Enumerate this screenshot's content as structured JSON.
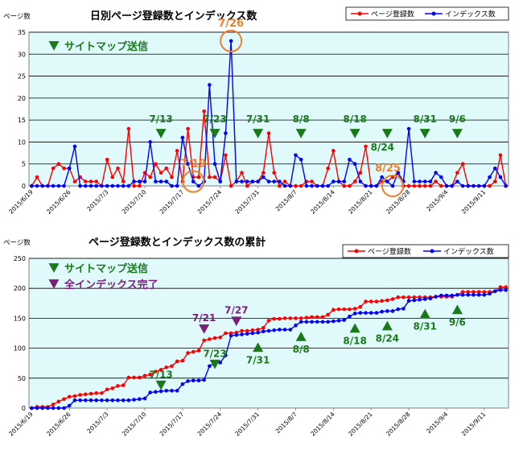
{
  "chart_data": [
    {
      "type": "line",
      "title": "日別ページ登録数とインデックス数",
      "ylabel": "ページ数",
      "xlabel": "",
      "ylim": [
        0,
        35
      ],
      "yticks": [
        0,
        5,
        10,
        15,
        20,
        25,
        30,
        35
      ],
      "x_start": "2015/6/19",
      "x_end": "2015/9/14",
      "x_ticks": [
        "2015/6/19",
        "2015/6/26",
        "2015/7/3",
        "2015/7/10",
        "2015/7/17",
        "2015/7/24",
        "2015/7/31",
        "2015/8/7",
        "2015/8/14",
        "2015/8/21",
        "2015/8/28",
        "2015/9/4",
        "2015/9/11"
      ],
      "grid": true,
      "legend_position": "top-right",
      "colors": {
        "page": "#ff0000",
        "index": "#0000ff",
        "marker": "#1a7a1a",
        "circle": "#f07f2a",
        "plot_bg": "#e0fafc"
      },
      "series": [
        {
          "name": "ページ登録数",
          "values": [
            0,
            2,
            0,
            0,
            4,
            5,
            4,
            4,
            1,
            2,
            1,
            1,
            1,
            0,
            6,
            2,
            4,
            1,
            13,
            0,
            0,
            3,
            2,
            5,
            3,
            4,
            2,
            8,
            1,
            13,
            2,
            2,
            17,
            2,
            2,
            1,
            7,
            0,
            1,
            3,
            0,
            1,
            1,
            3,
            12,
            3,
            0,
            1,
            0,
            0,
            0,
            1,
            1,
            0,
            0,
            4,
            8,
            1,
            0,
            0,
            1,
            3,
            9,
            0,
            0,
            1,
            1,
            2,
            3,
            0,
            0,
            0,
            0,
            0,
            0,
            1,
            0,
            0,
            0,
            3,
            5,
            0,
            0,
            0,
            0,
            0,
            1,
            7,
            0
          ]
        },
        {
          "name": "インデックス数",
          "values": [
            0,
            0,
            0,
            0,
            0,
            0,
            0,
            4,
            9,
            0,
            0,
            0,
            0,
            0,
            0,
            0,
            0,
            0,
            0,
            1,
            1,
            1,
            10,
            1,
            1,
            1,
            0,
            0,
            11,
            5,
            1,
            0,
            1,
            23,
            5,
            1,
            12,
            33,
            1,
            1,
            1,
            1,
            1,
            2,
            1,
            1,
            1,
            0,
            0,
            7,
            6,
            0,
            0,
            0,
            0,
            0,
            1,
            1,
            1,
            6,
            5,
            1,
            0,
            0,
            0,
            2,
            1,
            0,
            3,
            1,
            13,
            1,
            1,
            1,
            1,
            3,
            2,
            0,
            0,
            1,
            0,
            0,
            0,
            0,
            0,
            2,
            4,
            2,
            0
          ]
        }
      ],
      "annotations": {
        "legend_label": "サイトマップ送信",
        "sitemap_dates": [
          "7/13",
          "7/23",
          "7/31",
          "8/8",
          "8/18",
          "8/24",
          "8/31",
          "9/6"
        ],
        "circled_dates": [
          "7/19",
          "7/26",
          "8/25"
        ]
      }
    },
    {
      "type": "line",
      "title": "ページ登録数とインデックス数の累計",
      "ylabel": "ページ数",
      "xlabel": "",
      "ylim": [
        0,
        250
      ],
      "yticks": [
        0,
        50,
        100,
        150,
        200,
        250
      ],
      "x_start": "2015/6/19",
      "x_end": "2015/9/14",
      "x_ticks": [
        "2015/6/19",
        "2015/6/26",
        "2015/7/3",
        "2015/7/10",
        "2015/7/17",
        "2015/7/24",
        "2015/7/31",
        "2015/8/7",
        "2015/8/14",
        "2015/8/21",
        "2015/8/28",
        "2015/9/4",
        "2015/9/11"
      ],
      "grid": true,
      "legend_position": "top-right",
      "colors": {
        "page": "#ff0000",
        "index": "#0000ff",
        "marker": "#1a7a1a",
        "marker2": "#7a1f7a",
        "plot_bg": "#e0fafc"
      },
      "series": [
        {
          "name": "ページ登録数",
          "values": [
            0,
            2,
            2,
            2,
            6,
            11,
            15,
            19,
            20,
            22,
            23,
            24,
            25,
            25,
            31,
            33,
            37,
            38,
            51,
            51,
            51,
            54,
            56,
            61,
            64,
            68,
            70,
            78,
            79,
            92,
            94,
            96,
            113,
            115,
            117,
            118,
            125,
            125,
            126,
            129,
            129,
            130,
            131,
            134,
            146,
            149,
            149,
            150,
            150,
            150,
            150,
            151,
            152,
            152,
            152,
            156,
            164,
            165,
            165,
            165,
            166,
            169,
            178,
            178,
            178,
            179,
            180,
            182,
            185,
            185,
            185,
            185,
            185,
            185,
            185,
            186,
            186,
            186,
            186,
            189,
            194,
            194,
            194,
            194,
            194,
            194,
            195,
            202,
            202
          ]
        },
        {
          "name": "インデックス数",
          "values": [
            0,
            0,
            0,
            0,
            0,
            0,
            0,
            4,
            13,
            13,
            13,
            13,
            13,
            13,
            13,
            13,
            13,
            13,
            13,
            14,
            15,
            16,
            26,
            27,
            28,
            29,
            29,
            29,
            40,
            45,
            46,
            46,
            47,
            70,
            75,
            76,
            88,
            121,
            122,
            123,
            124,
            125,
            126,
            128,
            129,
            130,
            131,
            131,
            131,
            138,
            144,
            144,
            144,
            144,
            144,
            144,
            145,
            146,
            147,
            153,
            158,
            159,
            159,
            159,
            159,
            161,
            162,
            162,
            165,
            166,
            179,
            180,
            181,
            182,
            183,
            186,
            188,
            188,
            188,
            189,
            189,
            189,
            189,
            189,
            189,
            191,
            195,
            197,
            197
          ]
        }
      ],
      "annotations": {
        "legend_label_1": "サイトマップ送信",
        "legend_label_2": "全インデックス完了",
        "sitemap_dates": [
          "7/13",
          "7/23",
          "7/31",
          "8/8",
          "8/18",
          "8/24",
          "8/31",
          "9/6"
        ],
        "complete_dates": [
          "7/21",
          "7/27"
        ]
      }
    }
  ]
}
